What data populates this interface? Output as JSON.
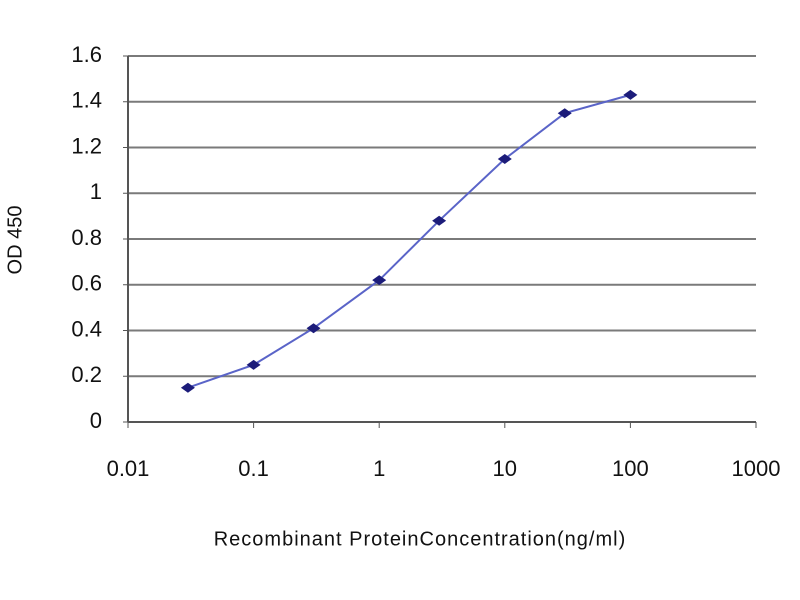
{
  "chart_data": {
    "type": "line",
    "xlabel": "Recombinant ProteinConcentration(ng/ml)",
    "ylabel": "OD 450",
    "x": [
      0.03,
      0.1,
      0.3,
      1,
      3,
      10,
      30,
      100
    ],
    "values": [
      0.15,
      0.25,
      0.41,
      0.62,
      0.88,
      1.15,
      1.35,
      1.43
    ],
    "color": "#5a64c8",
    "marker_color": "#1c1c7a",
    "xscale": "log",
    "xlim": [
      0.01,
      1000
    ],
    "xticks": [
      0.01,
      0.1,
      1,
      10,
      100,
      1000
    ],
    "ylim": [
      0,
      1.6
    ],
    "yticks": [
      0,
      0.2,
      0.4,
      0.6,
      0.8,
      1,
      1.2,
      1.4,
      1.6
    ],
    "grid": true
  }
}
